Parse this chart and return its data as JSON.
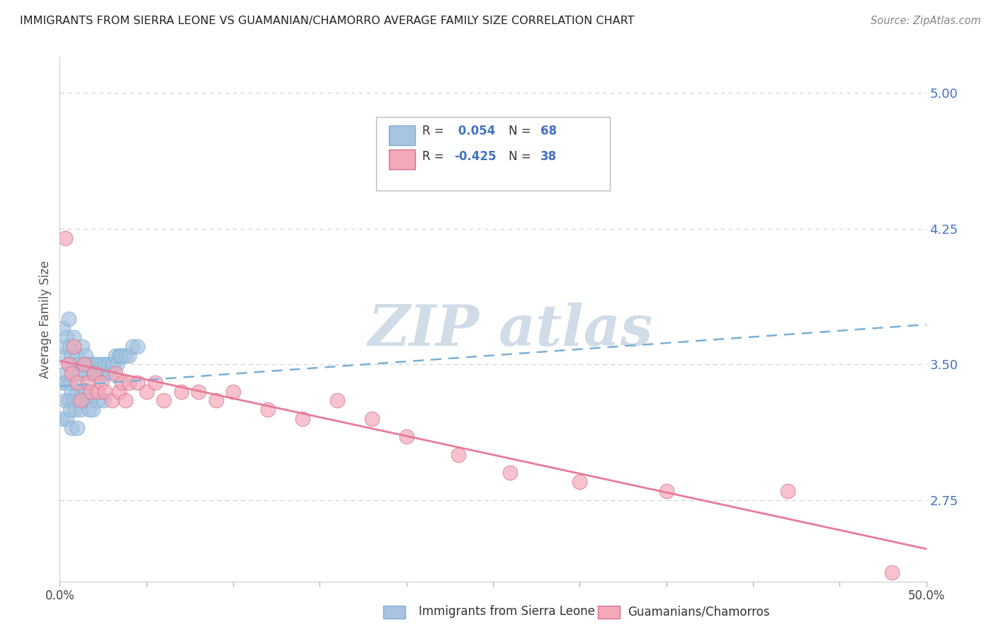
{
  "title": "IMMIGRANTS FROM SIERRA LEONE VS GUAMANIAN/CHAMORRO AVERAGE FAMILY SIZE CORRELATION CHART",
  "source": "Source: ZipAtlas.com",
  "ylabel": "Average Family Size",
  "right_yticks": [
    2.75,
    3.5,
    4.25,
    5.0
  ],
  "right_ytick_labels": [
    "2.75",
    "3.50",
    "4.25",
    "5.00"
  ],
  "xlim": [
    0.0,
    0.5
  ],
  "ylim": [
    2.3,
    5.2
  ],
  "series1_label": "Immigrants from Sierra Leone",
  "series1_color": "#a8c4e0",
  "series1_edge": "#7bafd4",
  "series1_R": 0.054,
  "series1_N": 68,
  "series1_x": [
    0.001,
    0.002,
    0.002,
    0.002,
    0.003,
    0.003,
    0.003,
    0.004,
    0.004,
    0.004,
    0.005,
    0.005,
    0.005,
    0.006,
    0.006,
    0.006,
    0.007,
    0.007,
    0.007,
    0.008,
    0.008,
    0.008,
    0.009,
    0.009,
    0.01,
    0.01,
    0.01,
    0.011,
    0.011,
    0.012,
    0.012,
    0.013,
    0.013,
    0.014,
    0.014,
    0.015,
    0.015,
    0.016,
    0.016,
    0.017,
    0.017,
    0.018,
    0.018,
    0.019,
    0.019,
    0.02,
    0.021,
    0.022,
    0.022,
    0.023,
    0.024,
    0.025,
    0.025,
    0.026,
    0.027,
    0.028,
    0.029,
    0.03,
    0.031,
    0.032,
    0.033,
    0.034,
    0.035,
    0.036,
    0.038,
    0.04,
    0.042,
    0.045
  ],
  "series1_y": [
    3.2,
    3.55,
    3.7,
    3.4,
    3.6,
    3.45,
    3.3,
    3.65,
    3.4,
    3.2,
    3.5,
    3.75,
    3.3,
    3.6,
    3.4,
    3.25,
    3.55,
    3.35,
    3.15,
    3.5,
    3.3,
    3.65,
    3.45,
    3.25,
    3.55,
    3.35,
    3.15,
    3.5,
    3.3,
    3.45,
    3.25,
    3.6,
    3.35,
    3.5,
    3.3,
    3.55,
    3.35,
    3.5,
    3.3,
    3.45,
    3.25,
    3.5,
    3.3,
    3.45,
    3.25,
    3.5,
    3.45,
    3.5,
    3.3,
    3.45,
    3.5,
    3.45,
    3.3,
    3.5,
    3.45,
    3.5,
    3.45,
    3.5,
    3.5,
    3.55,
    3.5,
    3.55,
    3.55,
    3.55,
    3.55,
    3.55,
    3.6,
    3.6
  ],
  "series2_label": "Guamanians/Chamorros",
  "series2_color": "#f4a8b8",
  "series2_edge": "#d47090",
  "series2_R": -0.425,
  "series2_N": 38,
  "series2_x": [
    0.003,
    0.005,
    0.007,
    0.008,
    0.01,
    0.012,
    0.014,
    0.016,
    0.018,
    0.02,
    0.022,
    0.024,
    0.026,
    0.03,
    0.032,
    0.034,
    0.036,
    0.038,
    0.04,
    0.045,
    0.05,
    0.055,
    0.06,
    0.07,
    0.08,
    0.09,
    0.1,
    0.12,
    0.14,
    0.16,
    0.18,
    0.2,
    0.23,
    0.26,
    0.3,
    0.35,
    0.42,
    0.48
  ],
  "series2_y": [
    4.2,
    3.5,
    3.45,
    3.6,
    3.4,
    3.3,
    3.5,
    3.4,
    3.35,
    3.45,
    3.35,
    3.4,
    3.35,
    3.3,
    3.45,
    3.35,
    3.4,
    3.3,
    3.4,
    3.4,
    3.35,
    3.4,
    3.3,
    3.35,
    3.35,
    3.3,
    3.35,
    3.25,
    3.2,
    3.3,
    3.2,
    3.1,
    3.0,
    2.9,
    2.85,
    2.8,
    2.8,
    2.35
  ],
  "trendline1_color": "#7bafd4",
  "trendline2_color": "#e87a9a",
  "trendline1_y0": 3.38,
  "trendline1_y1": 3.72,
  "trendline2_y0": 3.52,
  "trendline2_y1": 2.48,
  "watermark_color": "#d0dce8",
  "background_color": "#ffffff",
  "grid_color": "#cccccc",
  "legend_box_color": "#ffffff",
  "legend_box_edge": "#bbbbbb"
}
